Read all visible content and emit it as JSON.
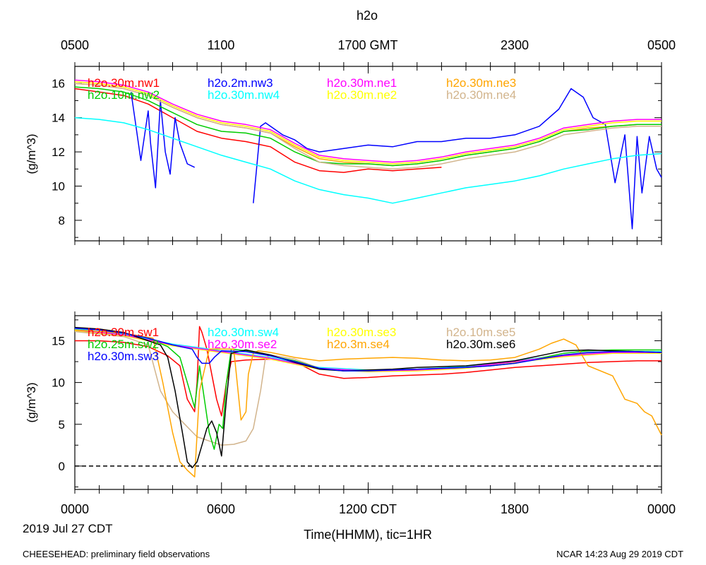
{
  "figure": {
    "title": "h2o",
    "gmt_ticks": [
      "0500",
      "1100",
      "1700 GMT",
      "2300",
      "0500"
    ],
    "cdt_ticks": [
      "0000",
      "0600",
      "1200 CDT",
      "1800",
      "0000"
    ],
    "date_label": "2019 Jul 27 CDT",
    "xlabel": "Time(HHMM), tic=1HR",
    "footer_left": "CHEESEHEAD: preliminary field observations",
    "footer_right": "NCAR 14:23 Aug 29 2019 CDT"
  },
  "chart_data": [
    {
      "type": "line",
      "title": "h2o",
      "ylabel": "(g/m^3)",
      "xlabel": "Time(HHMM), tic=1HR",
      "x_unit": "hours since 0000 CDT",
      "xlim": [
        0,
        24
      ],
      "ylim": [
        6.8,
        17
      ],
      "yticks": [
        8,
        10,
        12,
        14,
        16
      ],
      "legend": [
        [
          "h2o.30m.nw1",
          "h2o.2m.nw3",
          "h2o.30m.ne1",
          "h2o.30m.ne3"
        ],
        [
          "h2o.10m.nw2",
          "h2o.30m.nw4",
          "h2o.30m.ne2",
          "h2o.30m.ne4"
        ]
      ],
      "series": [
        {
          "name": "h2o.30m.nw1",
          "color": "#ff0000",
          "x": [
            0,
            1,
            2,
            3,
            4,
            5,
            6,
            7,
            8,
            9,
            10,
            11,
            12,
            13,
            14,
            15
          ],
          "y": [
            15.7,
            15.5,
            15.3,
            14.8,
            14.0,
            13.2,
            12.8,
            12.6,
            12.3,
            11.4,
            10.9,
            10.8,
            11.0,
            10.9,
            11.0,
            11.1
          ]
        },
        {
          "name": "h2o.2m.nw3",
          "color": "#0000ff",
          "x": [
            2.3,
            2.5,
            2.7,
            3.0,
            3.1,
            3.3,
            3.5,
            3.7,
            3.9,
            4.1,
            4.3,
            4.6,
            4.9,
            null,
            7.3,
            7.6,
            7.8,
            8.5,
            9.0,
            9.5,
            10.0,
            11.0,
            12.0,
            13.0,
            14.0,
            15.0,
            16.0,
            17.0,
            18.0,
            19.0,
            19.8,
            20.3,
            20.8,
            21.2,
            21.7,
            22.1,
            22.5,
            22.8,
            23.0,
            23.2,
            23.5,
            23.8,
            24.0
          ],
          "y": [
            15.5,
            13.5,
            11.5,
            14.4,
            12.5,
            9.9,
            15.0,
            12.0,
            10.7,
            14.0,
            12.5,
            11.3,
            11.1,
            null,
            9.0,
            13.5,
            13.7,
            13.0,
            12.7,
            12.2,
            12.0,
            12.2,
            12.4,
            12.3,
            12.6,
            12.6,
            12.8,
            12.8,
            13.0,
            13.5,
            14.5,
            15.7,
            15.2,
            14.0,
            13.6,
            10.2,
            13.0,
            7.5,
            12.9,
            9.6,
            12.9,
            11.0,
            10.5
          ]
        },
        {
          "name": "h2o.30m.ne1",
          "color": "#ff00ff",
          "x": [
            0,
            1,
            2,
            3,
            4,
            5,
            6,
            7,
            8,
            9,
            10,
            11,
            12,
            13,
            14,
            15,
            16,
            17,
            18,
            19,
            20,
            21,
            22,
            23,
            24
          ],
          "y": [
            16.2,
            16.1,
            15.9,
            15.5,
            14.8,
            14.2,
            13.8,
            13.6,
            13.3,
            12.5,
            11.8,
            11.6,
            11.5,
            11.4,
            11.5,
            11.7,
            12.0,
            12.2,
            12.4,
            12.8,
            13.4,
            13.6,
            13.8,
            13.9,
            13.9
          ]
        },
        {
          "name": "h2o.30m.ne3",
          "color": "#ffa500",
          "x": [
            0,
            1,
            2,
            3,
            4,
            5,
            6,
            7,
            8,
            9,
            10,
            11,
            12,
            13,
            14,
            15,
            16,
            17,
            18,
            19,
            20,
            21,
            22,
            23,
            24
          ],
          "y": [
            16.0,
            15.9,
            15.7,
            15.3,
            14.6,
            14.0,
            13.6,
            13.4,
            13.1,
            12.3,
            11.6,
            11.4,
            11.3,
            11.2,
            11.3,
            11.5,
            11.8,
            12.0,
            12.2,
            12.6,
            13.2,
            13.4,
            13.5,
            13.6,
            13.6
          ]
        },
        {
          "name": "h2o.10m.nw2",
          "color": "#00cc00",
          "x": [
            0,
            1,
            2,
            3,
            4,
            5,
            6,
            7,
            8,
            9,
            10,
            11,
            12,
            13,
            14,
            15,
            16,
            17,
            18,
            19,
            20,
            21,
            22,
            23,
            24
          ],
          "y": [
            15.8,
            15.7,
            15.5,
            15.0,
            14.3,
            13.6,
            13.2,
            13.1,
            12.8,
            12.0,
            11.4,
            11.3,
            11.3,
            11.2,
            11.3,
            11.5,
            11.8,
            12.0,
            12.2,
            12.6,
            13.2,
            13.3,
            13.5,
            13.6,
            13.6
          ]
        },
        {
          "name": "h2o.30m.nw4",
          "color": "#00ffff",
          "x": [
            0,
            1,
            2,
            3,
            4,
            5,
            6,
            7,
            8,
            9,
            10,
            11,
            12,
            13,
            14,
            15,
            16,
            17,
            18,
            19,
            20,
            21,
            22,
            23,
            24
          ],
          "y": [
            14.0,
            13.9,
            13.7,
            13.3,
            12.8,
            12.3,
            11.8,
            11.4,
            11.0,
            10.3,
            9.8,
            9.5,
            9.3,
            9.0,
            9.3,
            9.6,
            9.9,
            10.1,
            10.3,
            10.6,
            11.0,
            11.3,
            11.6,
            11.8,
            11.9
          ]
        },
        {
          "name": "h2o.30m.ne2",
          "color": "#ffff00",
          "x": [
            0,
            1,
            2,
            3,
            4,
            5,
            6,
            7,
            8,
            9,
            10,
            11,
            12,
            13,
            14,
            15,
            16,
            17,
            18,
            19,
            20,
            21,
            22,
            23,
            24
          ],
          "y": [
            16.1,
            16.0,
            15.8,
            15.4,
            14.7,
            14.1,
            13.7,
            13.5,
            13.2,
            12.4,
            11.7,
            11.5,
            11.4,
            11.3,
            11.4,
            11.6,
            11.9,
            12.1,
            12.3,
            12.7,
            13.3,
            13.5,
            13.7,
            13.8,
            13.8
          ]
        },
        {
          "name": "h2o.30m.ne4",
          "color": "#d2b48c",
          "x": [
            0,
            1,
            2,
            3,
            4,
            5,
            6,
            7,
            8,
            9,
            10,
            11,
            12,
            13,
            14,
            15,
            16,
            17,
            18,
            19,
            20,
            21,
            22,
            23,
            24
          ],
          "y": [
            16.0,
            15.9,
            15.7,
            15.3,
            14.6,
            14.0,
            13.6,
            13.4,
            13.1,
            12.2,
            11.4,
            11.2,
            11.1,
            11.0,
            11.1,
            11.3,
            11.6,
            11.8,
            12.0,
            12.4,
            13.0,
            13.2,
            13.4,
            13.5,
            13.5
          ]
        }
      ]
    },
    {
      "type": "line",
      "ylabel": "(g/m^3)",
      "xlabel": "Time(HHMM), tic=1HR",
      "x_unit": "hours since 0000 CDT",
      "xlim": [
        0,
        24
      ],
      "ylim": [
        -2.8,
        18
      ],
      "yticks": [
        0,
        5,
        10,
        15
      ],
      "reference_line": {
        "y": 0,
        "style": "dashed"
      },
      "legend": [
        [
          "h2o.30m.sw1",
          "h2o.30m.sw4",
          "h2o.30m.se3",
          "h2o.10m.se5"
        ],
        [
          "h2o.25m.sw2",
          "h2o.30m.se2",
          "h2o.3m.se4",
          "h2o.30m.se6"
        ],
        [
          "h2o.30m.sw3"
        ]
      ],
      "series": [
        {
          "name": "h2o.30m.sw1",
          "color": "#ff0000",
          "x": [
            0,
            1,
            2,
            3,
            3.8,
            4.3,
            4.6,
            4.9,
            5.0,
            5.1,
            5.2,
            5.4,
            5.6,
            5.8,
            6.0,
            6.2,
            6.4,
            7.0,
            8.0,
            9.0,
            10.0,
            11.0,
            12.0,
            13.0,
            14.0,
            15.0,
            16.0,
            17.0,
            18.0,
            19.0,
            20.0,
            21.0,
            22.0,
            23.0,
            24.0
          ],
          "y": [
            15.0,
            15.0,
            14.8,
            14.3,
            13.2,
            12.0,
            8.0,
            6.5,
            10.0,
            16.7,
            16.0,
            14.0,
            11.0,
            8.0,
            6.0,
            10.0,
            12.5,
            12.7,
            12.8,
            12.5,
            11.0,
            10.5,
            10.6,
            10.8,
            10.9,
            11.0,
            11.2,
            11.5,
            11.8,
            12.0,
            12.2,
            12.4,
            12.5,
            12.6,
            12.6
          ]
        },
        {
          "name": "h2o.30m.sw4",
          "color": "#00ffff",
          "x": [
            0,
            2,
            4,
            6,
            8,
            10,
            12,
            14,
            16,
            18,
            20,
            22,
            24
          ],
          "y": [
            16.4,
            15.8,
            14.6,
            13.8,
            13.0,
            11.8,
            11.5,
            11.6,
            11.9,
            12.6,
            13.3,
            13.7,
            13.7
          ]
        },
        {
          "name": "h2o.30m.se3",
          "color": "#ffff00",
          "x": [
            0,
            2,
            4,
            6,
            8,
            10,
            12,
            14,
            16,
            18,
            20,
            22,
            24
          ],
          "y": [
            16.2,
            15.6,
            14.4,
            13.6,
            12.8,
            11.6,
            11.3,
            11.4,
            11.7,
            12.4,
            13.1,
            13.5,
            13.5
          ]
        },
        {
          "name": "h2o.10m.se5",
          "color": "#d2b48c",
          "x": [
            0,
            2,
            3.0,
            3.5,
            4.0,
            4.5,
            5.0,
            5.5,
            6.0,
            6.5,
            7.0,
            7.3,
            7.6,
            7.8,
            8.0,
            9.0,
            10.0,
            12.0,
            14.0,
            16.0,
            18.0,
            20.0,
            22.0,
            24.0
          ],
          "y": [
            16.1,
            15.5,
            14.5,
            9.0,
            6.5,
            5.0,
            3.5,
            3.0,
            2.5,
            2.6,
            3.0,
            4.5,
            9.0,
            13.0,
            13.3,
            12.8,
            11.7,
            11.4,
            11.5,
            11.8,
            12.5,
            13.3,
            13.6,
            13.6
          ]
        },
        {
          "name": "h2o.25m.sw2",
          "color": "#00cc00",
          "x": [
            0,
            1,
            2,
            3,
            3.8,
            4.3,
            4.6,
            4.9,
            5.1,
            5.3,
            5.5,
            5.7,
            5.9,
            6.05,
            6.2,
            6.4,
            7.0,
            8.0,
            9.0,
            10.0,
            11.0,
            12.0,
            13.0,
            14.0,
            15.0,
            16.0,
            17.0,
            18.0,
            19.0,
            20.0,
            21.0,
            22.0,
            23.0,
            24.0
          ],
          "y": [
            16.5,
            16.3,
            15.9,
            15.3,
            14.3,
            13.0,
            10.0,
            7.0,
            12.0,
            8.0,
            4.0,
            2.0,
            5.0,
            4.5,
            10.0,
            14.0,
            13.8,
            13.2,
            12.6,
            11.7,
            11.4,
            11.4,
            11.5,
            11.6,
            11.7,
            11.8,
            12.0,
            12.3,
            12.9,
            13.5,
            13.8,
            13.9,
            13.9,
            13.9
          ]
        },
        {
          "name": "h2o.30m.se2",
          "color": "#ff00ff",
          "x": [
            0,
            2,
            4,
            6,
            8,
            10,
            12,
            14,
            16,
            18,
            20,
            22,
            24
          ],
          "y": [
            16.3,
            15.7,
            14.5,
            13.7,
            12.9,
            11.7,
            11.4,
            11.5,
            11.8,
            12.5,
            13.2,
            13.6,
            13.6
          ]
        },
        {
          "name": "h2o.3m.se4",
          "color": "#ffa500",
          "x": [
            0,
            2,
            3.2,
            3.6,
            4.0,
            4.3,
            4.6,
            4.9,
            5.1,
            5.5,
            6.0,
            6.5,
            6.8,
            7.0,
            7.1,
            7.3,
            7.5,
            8.0,
            9.0,
            10.0,
            11.0,
            12.0,
            13.0,
            14.0,
            15.0,
            16.0,
            17.0,
            18.0,
            19.0,
            19.5,
            20.0,
            20.5,
            21.0,
            22.0,
            22.5,
            23.0,
            23.3,
            23.6,
            24.0
          ],
          "y": [
            16.3,
            15.9,
            15.3,
            10.0,
            4.0,
            0.5,
            -0.5,
            -1.3,
            9.0,
            14.0,
            14.0,
            14.0,
            5.5,
            6.5,
            11.0,
            13.5,
            13.8,
            13.6,
            13.0,
            12.6,
            12.8,
            12.9,
            13.0,
            12.9,
            12.7,
            12.6,
            12.7,
            13.0,
            14.0,
            14.7,
            15.2,
            14.5,
            12.0,
            10.8,
            8.0,
            7.5,
            6.5,
            6.0,
            3.7
          ]
        },
        {
          "name": "h2o.30m.se6",
          "color": "#000000",
          "x": [
            0,
            1,
            2,
            3,
            3.5,
            3.8,
            4.1,
            4.4,
            4.6,
            4.8,
            5.0,
            5.2,
            5.4,
            5.6,
            5.8,
            6.0,
            6.2,
            6.4,
            7.0,
            8.0,
            9.0,
            10.0,
            11.0,
            12.0,
            13.0,
            14.0,
            15.0,
            16.0,
            17.0,
            18.0,
            19.0,
            20.0,
            21.0,
            22.0,
            23.0,
            24.0
          ],
          "y": [
            16.6,
            16.4,
            16.0,
            15.0,
            14.5,
            13.0,
            9.0,
            4.0,
            0.5,
            -0.2,
            0.5,
            2.5,
            4.5,
            5.4,
            4.0,
            1.2,
            8.0,
            13.5,
            13.9,
            13.3,
            12.4,
            11.6,
            11.4,
            11.5,
            11.6,
            11.8,
            11.9,
            12.0,
            12.3,
            12.6,
            13.2,
            13.8,
            13.9,
            13.8,
            13.7,
            13.6
          ]
        },
        {
          "name": "h2o.30m.sw3",
          "color": "#0000ff",
          "x": [
            0,
            1,
            2,
            3,
            4,
            4.8,
            5.0,
            5.2,
            5.5,
            5.7,
            6.0,
            7.0,
            8.0,
            9.0,
            10.0,
            11.0,
            12.0,
            13.0,
            14.0,
            15.0,
            16.0,
            17.0,
            18.0,
            19.0,
            20.0,
            21.0,
            22.0,
            23.0,
            24.0
          ],
          "y": [
            16.5,
            16.3,
            15.9,
            15.3,
            14.5,
            14.0,
            13.0,
            12.3,
            12.3,
            13.0,
            13.8,
            13.7,
            13.2,
            12.5,
            11.7,
            11.4,
            11.4,
            11.5,
            11.6,
            11.7,
            11.8,
            12.0,
            12.3,
            12.8,
            13.3,
            13.6,
            13.7,
            13.7,
            13.6
          ]
        }
      ]
    }
  ]
}
